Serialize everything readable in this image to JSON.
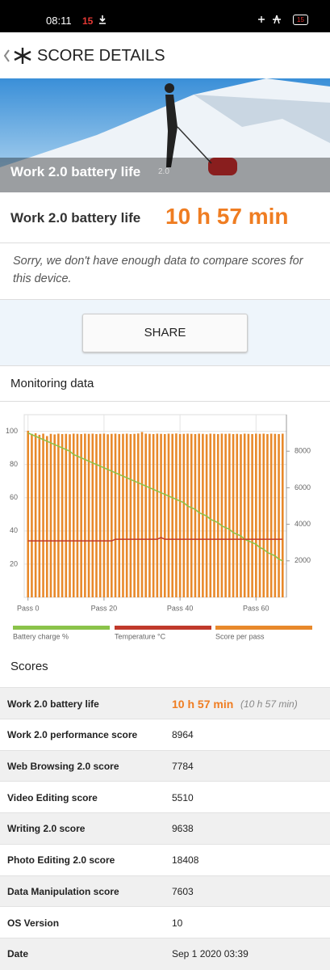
{
  "status_bar": {
    "time": "08:11",
    "notification_count": "15",
    "battery": "15"
  },
  "header": {
    "title": "SCORE DETAILS"
  },
  "banner": {
    "title": "Work 2.0 battery life",
    "version": "2.0"
  },
  "result": {
    "label": "Work 2.0 battery life",
    "value": "10 h 57 min"
  },
  "notice": "Sorry, we don't have enough data to compare scores for this device.",
  "share_button": "SHARE",
  "monitoring_title": "Monitoring data",
  "chart_data": {
    "type": "combo",
    "x": [
      0,
      1,
      2,
      3,
      4,
      5,
      6,
      7,
      8,
      9,
      10,
      11,
      12,
      13,
      14,
      15,
      16,
      17,
      18,
      19,
      20,
      21,
      22,
      23,
      24,
      25,
      26,
      27,
      28,
      29,
      30,
      31,
      32,
      33,
      34,
      35,
      36,
      37,
      38,
      39,
      40,
      41,
      42,
      43,
      44,
      45,
      46,
      47,
      48,
      49,
      50,
      51,
      52,
      53,
      54,
      55,
      56,
      57,
      58,
      59,
      60,
      61,
      62,
      63,
      64,
      65,
      66,
      67
    ],
    "xlim": [
      -1,
      68
    ],
    "xticks": [
      {
        "value": 0,
        "label": "Pass 0"
      },
      {
        "value": 20,
        "label": "Pass 20"
      },
      {
        "value": 40,
        "label": "Pass 40"
      },
      {
        "value": 60,
        "label": "Pass 60"
      }
    ],
    "ylim": [
      0,
      110
    ],
    "yticks": [
      20,
      40,
      60,
      80,
      100
    ],
    "y2lim": [
      0,
      10000
    ],
    "y2ticks": [
      2000,
      4000,
      6000,
      8000
    ],
    "grid": true,
    "series": [
      {
        "name": "Battery charge %",
        "type": "line",
        "color": "#8bc34a",
        "values": [
          99,
          98,
          97,
          96,
          95,
          94,
          93,
          92,
          91,
          90,
          89,
          88,
          86,
          85,
          84,
          83,
          82,
          81,
          80,
          79,
          78,
          77,
          76,
          75,
          74,
          73,
          72,
          71,
          70,
          69,
          68,
          67,
          66,
          65,
          64,
          63,
          62,
          61,
          60,
          59,
          58,
          57,
          55,
          54,
          53,
          51,
          50,
          49,
          47,
          46,
          45,
          43,
          42,
          41,
          39,
          38,
          37,
          35,
          34,
          33,
          32,
          30,
          29,
          27,
          26,
          25,
          23,
          22
        ]
      },
      {
        "name": "Temperature °C",
        "type": "line",
        "color": "#c0392b",
        "values": [
          34,
          34,
          34,
          34,
          34,
          34,
          34,
          34,
          34,
          34,
          34,
          34,
          34,
          34,
          34,
          34,
          34,
          34,
          34,
          34,
          34,
          34,
          34,
          35,
          35,
          35,
          35,
          35,
          35,
          35,
          35,
          35,
          35,
          35,
          35,
          36,
          35,
          35,
          35,
          35,
          35,
          35,
          35,
          35,
          35,
          35,
          35,
          35,
          35,
          35,
          35,
          35,
          35,
          35,
          35,
          35,
          35,
          35,
          35,
          35,
          35,
          35,
          35,
          35,
          35,
          35,
          35,
          35
        ]
      },
      {
        "name": "Score per pass",
        "type": "bar",
        "axis": "y2",
        "color": "#e8892b",
        "values": [
          9120,
          8950,
          8980,
          8900,
          8960,
          8830,
          8950,
          8920,
          8960,
          8940,
          8950,
          8930,
          8960,
          8950,
          8940,
          8960,
          8950,
          8960,
          8940,
          8950,
          8960,
          8930,
          8950,
          8960,
          8940,
          8950,
          8960,
          8940,
          8950,
          8970,
          9050,
          8960,
          8950,
          8940,
          8960,
          8950,
          8940,
          8960,
          8950,
          8970,
          8940,
          8950,
          8960,
          8950,
          8940,
          8960,
          8950,
          8930,
          8960,
          8950,
          8940,
          8960,
          8950,
          8960,
          8940,
          8950,
          8930,
          8960,
          8950,
          8940,
          8960,
          8950,
          8960,
          8940,
          8960,
          8950,
          8940,
          8960
        ]
      }
    ]
  },
  "scores": {
    "title": "Scores",
    "rows": [
      {
        "label": "Work 2.0 battery life",
        "value": "10 h 57 min",
        "note": "(10 h 57 min)"
      },
      {
        "label": "Work 2.0 performance score",
        "value": 8964
      },
      {
        "label": "Web Browsing 2.0 score",
        "value": 7784
      },
      {
        "label": "Video Editing score",
        "value": 5510
      },
      {
        "label": "Writing 2.0 score",
        "value": 9638
      },
      {
        "label": "Photo Editing 2.0 score",
        "value": 18408
      },
      {
        "label": "Data Manipulation score",
        "value": 7603
      },
      {
        "label": "OS Version",
        "value": 10
      },
      {
        "label": "Date",
        "value": "Sep 1 2020 03:39"
      }
    ]
  }
}
